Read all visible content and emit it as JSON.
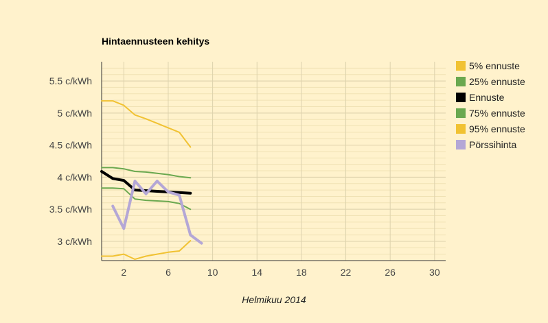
{
  "chart_data": {
    "type": "line",
    "title": "Hintaennusteen kehitys",
    "xlabel": "Helmikuu 2014",
    "ylabel": "",
    "xlim": [
      0,
      31
    ],
    "ylim": [
      2.7,
      5.8
    ],
    "x_ticks": [
      2,
      6,
      10,
      14,
      18,
      22,
      26,
      30
    ],
    "y_ticks": [
      {
        "value": 3.0,
        "label": "3 c/kWh"
      },
      {
        "value": 3.5,
        "label": "3.5 c/kWh"
      },
      {
        "value": 4.0,
        "label": "4 c/kWh"
      },
      {
        "value": 4.5,
        "label": "4.5 c/kWh"
      },
      {
        "value": 5.0,
        "label": "5 c/kWh"
      },
      {
        "value": 5.5,
        "label": "5.5 c/kWh"
      }
    ],
    "legend_position": "right",
    "series": [
      {
        "name": "5% ennuste",
        "color": "#f1c232",
        "width": 2,
        "x": [
          0,
          1,
          2,
          3,
          4,
          5,
          6,
          7,
          8
        ],
        "y": [
          2.77,
          2.77,
          2.8,
          2.72,
          2.77,
          2.8,
          2.83,
          2.85,
          3.01
        ]
      },
      {
        "name": "25% ennuste",
        "color": "#6aa84f",
        "width": 2,
        "x": [
          0,
          1,
          2,
          3,
          4,
          5,
          6,
          7,
          8
        ],
        "y": [
          3.83,
          3.83,
          3.82,
          3.66,
          3.64,
          3.63,
          3.62,
          3.59,
          3.5
        ]
      },
      {
        "name": "Ennuste",
        "color": "#000000",
        "width": 4,
        "x": [
          0,
          1,
          2,
          3,
          4,
          5,
          6,
          7,
          8
        ],
        "y": [
          4.09,
          3.98,
          3.95,
          3.8,
          3.79,
          3.78,
          3.77,
          3.76,
          3.75
        ]
      },
      {
        "name": "75% ennuste",
        "color": "#6aa84f",
        "width": 2,
        "x": [
          0,
          1,
          2,
          3,
          4,
          5,
          6,
          7,
          8
        ],
        "y": [
          4.15,
          4.15,
          4.13,
          4.09,
          4.08,
          4.06,
          4.04,
          4.01,
          3.99
        ]
      },
      {
        "name": "95% ennuste",
        "color": "#f1c232",
        "width": 2,
        "x": [
          0,
          1,
          2,
          3,
          4,
          5,
          6,
          7,
          8
        ],
        "y": [
          5.19,
          5.19,
          5.12,
          4.97,
          4.91,
          4.84,
          4.77,
          4.7,
          4.47
        ]
      },
      {
        "name": "Pörssihinta",
        "color": "#b4a7d6",
        "width": 4,
        "x": [
          1,
          2,
          3,
          4,
          5,
          6,
          7,
          8,
          9
        ],
        "y": [
          3.55,
          3.2,
          3.94,
          3.74,
          3.94,
          3.77,
          3.72,
          3.1,
          2.97
        ]
      }
    ]
  }
}
